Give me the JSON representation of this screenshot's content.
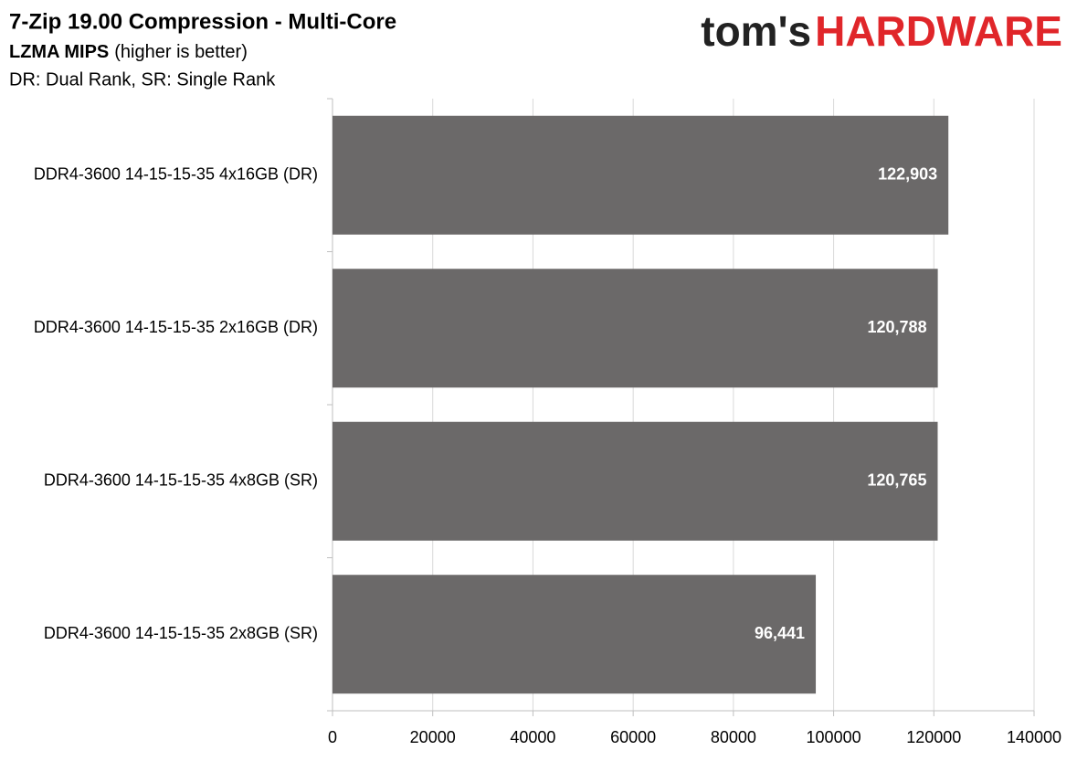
{
  "chart_data": {
    "type": "bar",
    "orientation": "horizontal",
    "title": "7-Zip 19.00 Compression - Multi-Core",
    "subtitle": "LZMA MIPS",
    "subtitle_note": "(higher is better)",
    "note": "DR: Dual Rank, SR: Single Rank",
    "logo": {
      "prefix": "tom's",
      "main": "HARDWARE"
    },
    "categories": [
      "DDR4-3600 14-15-15-35 4x16GB (DR)",
      "DDR4-3600 14-15-15-35 2x16GB (DR)",
      "DDR4-3600 14-15-15-35 4x8GB (SR)",
      "DDR4-3600 14-15-15-35 2x8GB (SR)"
    ],
    "values": [
      122903,
      120788,
      120765,
      96441
    ],
    "value_labels": [
      "122,903",
      "120,788",
      "120,765",
      "96,441"
    ],
    "color": "#6b6969",
    "xlim": [
      0,
      140000
    ],
    "xticks": [
      0,
      20000,
      40000,
      60000,
      80000,
      100000,
      120000,
      140000
    ],
    "grid": true
  }
}
